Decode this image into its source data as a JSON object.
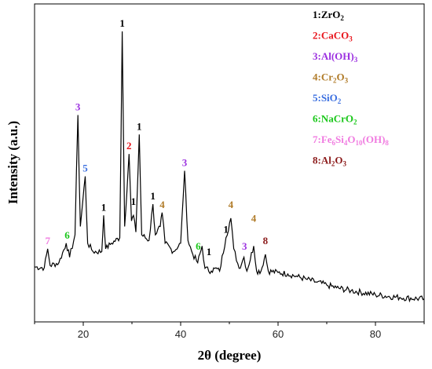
{
  "chart_data": {
    "type": "line",
    "xlabel": "2θ (degree)",
    "ylabel": "Intensity (a.u.)",
    "xlim": [
      10,
      90
    ],
    "ylim": [
      0,
      100
    ],
    "x_ticks": [
      "20",
      "40",
      "60",
      "80"
    ],
    "grid": false,
    "legend_position": "top-right",
    "colors": {
      "trace": "#000000",
      "ZrO2": "#000000",
      "CaCO3": "#e8141b",
      "AlOH3": "#9b30e0",
      "Cr2O3": "#b07b28",
      "SiO2": "#3b6fe0",
      "NaCrO2": "#19c719",
      "Fe6Si4O10OH8": "#f07be0",
      "Al2O3": "#8b1a1a"
    },
    "legend": [
      {
        "num": "1",
        "base": "ZrO",
        "sub": "2",
        "color": "#000000"
      },
      {
        "num": "2",
        "base": "CaCO",
        "sub": "3",
        "color": "#e8141b"
      },
      {
        "num": "3",
        "base": "Al(OH)",
        "sub": "3",
        "color": "#9b30e0"
      },
      {
        "num": "4",
        "base": "Cr",
        "sub": "2",
        "base2": "O",
        "sub2": "3",
        "color": "#b07b28"
      },
      {
        "num": "5",
        "base": "SiO",
        "sub": "2",
        "color": "#3b6fe0"
      },
      {
        "num": "6",
        "base": "NaCrO",
        "sub": "2",
        "color": "#19c719"
      },
      {
        "num": "7",
        "base": "Fe",
        "sub": "6",
        "base2": "Si",
        "sub2": "4",
        "base3": "O",
        "sub3": "10",
        "base4": "(OH)",
        "sub4": "8",
        "color": "#f07be0"
      },
      {
        "num": "8",
        "base": "Al",
        "sub": "2",
        "base2": "O",
        "sub2": "3",
        "color": "#8b1a1a"
      }
    ],
    "series": [
      {
        "values": [
          [
            10,
            15.5
          ],
          [
            12,
            15.2
          ],
          [
            12.7,
            22
          ],
          [
            13.2,
            16
          ],
          [
            15,
            17
          ],
          [
            16.5,
            24
          ],
          [
            17.2,
            19
          ],
          [
            18.3,
            27
          ],
          [
            18.9,
            70
          ],
          [
            19.4,
            30
          ],
          [
            20.4,
            48
          ],
          [
            20.9,
            24
          ],
          [
            22,
            21
          ],
          [
            23.8,
            21
          ],
          [
            24.2,
            34
          ],
          [
            24.6,
            22
          ],
          [
            25.8,
            24
          ],
          [
            27.5,
            26
          ],
          [
            28.0,
            100
          ],
          [
            28.5,
            30
          ],
          [
            29.4,
            56
          ],
          [
            29.9,
            32
          ],
          [
            30.3,
            34
          ],
          [
            30.8,
            28
          ],
          [
            31.5,
            63
          ],
          [
            32.0,
            27
          ],
          [
            33.5,
            25
          ],
          [
            34.3,
            38
          ],
          [
            34.8,
            27
          ],
          [
            35.3,
            29
          ],
          [
            35.8,
            30
          ],
          [
            36.2,
            35
          ],
          [
            36.8,
            24
          ],
          [
            38.5,
            21
          ],
          [
            40,
            24
          ],
          [
            40.8,
            50
          ],
          [
            41.5,
            25
          ],
          [
            42.5,
            20
          ],
          [
            43.5,
            17
          ],
          [
            44.4,
            23
          ],
          [
            45,
            15
          ],
          [
            46.3,
            14
          ],
          [
            47,
            15
          ],
          [
            48,
            14
          ],
          [
            49.3,
            26
          ],
          [
            50.3,
            33
          ],
          [
            50.9,
            22
          ],
          [
            52,
            15
          ],
          [
            53.0,
            19
          ],
          [
            53.6,
            14
          ],
          [
            55.0,
            23
          ],
          [
            55.6,
            14
          ],
          [
            56.5,
            14
          ],
          [
            57.4,
            20
          ],
          [
            58,
            14
          ],
          [
            60,
            13.5
          ],
          [
            62,
            13
          ],
          [
            64,
            12
          ],
          [
            66,
            11
          ],
          [
            68,
            10
          ],
          [
            70,
            9
          ],
          [
            72,
            8
          ],
          [
            75,
            7
          ],
          [
            80,
            5.5
          ],
          [
            85,
            4.5
          ],
          [
            90,
            4
          ]
        ]
      }
    ],
    "annotations": [
      {
        "x": 12.7,
        "y": 22,
        "label": "7",
        "color": "#f07be0"
      },
      {
        "x": 16.7,
        "y": 24,
        "label": "6",
        "color": "#19c719"
      },
      {
        "x": 18.9,
        "y": 70,
        "label": "3",
        "color": "#9b30e0"
      },
      {
        "x": 20.4,
        "y": 48,
        "label": "5",
        "color": "#3b6fe0"
      },
      {
        "x": 24.2,
        "y": 34,
        "label": "1",
        "color": "#000000"
      },
      {
        "x": 28.0,
        "y": 100,
        "label": "1",
        "color": "#000000"
      },
      {
        "x": 29.4,
        "y": 56,
        "label": "2",
        "color": "#e8141b"
      },
      {
        "x": 30.3,
        "y": 36,
        "label": "1",
        "color": "#000000"
      },
      {
        "x": 31.5,
        "y": 63,
        "label": "1",
        "color": "#000000"
      },
      {
        "x": 34.3,
        "y": 38,
        "label": "1",
        "color": "#000000"
      },
      {
        "x": 36.2,
        "y": 35,
        "label": "4",
        "color": "#b07b28"
      },
      {
        "x": 40.8,
        "y": 50,
        "label": "3",
        "color": "#9b30e0"
      },
      {
        "x": 43.6,
        "y": 20,
        "label": "6",
        "color": "#19c719"
      },
      {
        "x": 45.8,
        "y": 18,
        "label": "1",
        "color": "#000000"
      },
      {
        "x": 49.3,
        "y": 26,
        "label": "1",
        "color": "#000000"
      },
      {
        "x": 50.3,
        "y": 35,
        "label": "4",
        "color": "#b07b28"
      },
      {
        "x": 53.1,
        "y": 20,
        "label": "3",
        "color": "#9b30e0"
      },
      {
        "x": 55.0,
        "y": 30,
        "label": "4",
        "color": "#b07b28"
      },
      {
        "x": 57.4,
        "y": 22,
        "label": "8",
        "color": "#8b1a1a"
      }
    ]
  }
}
